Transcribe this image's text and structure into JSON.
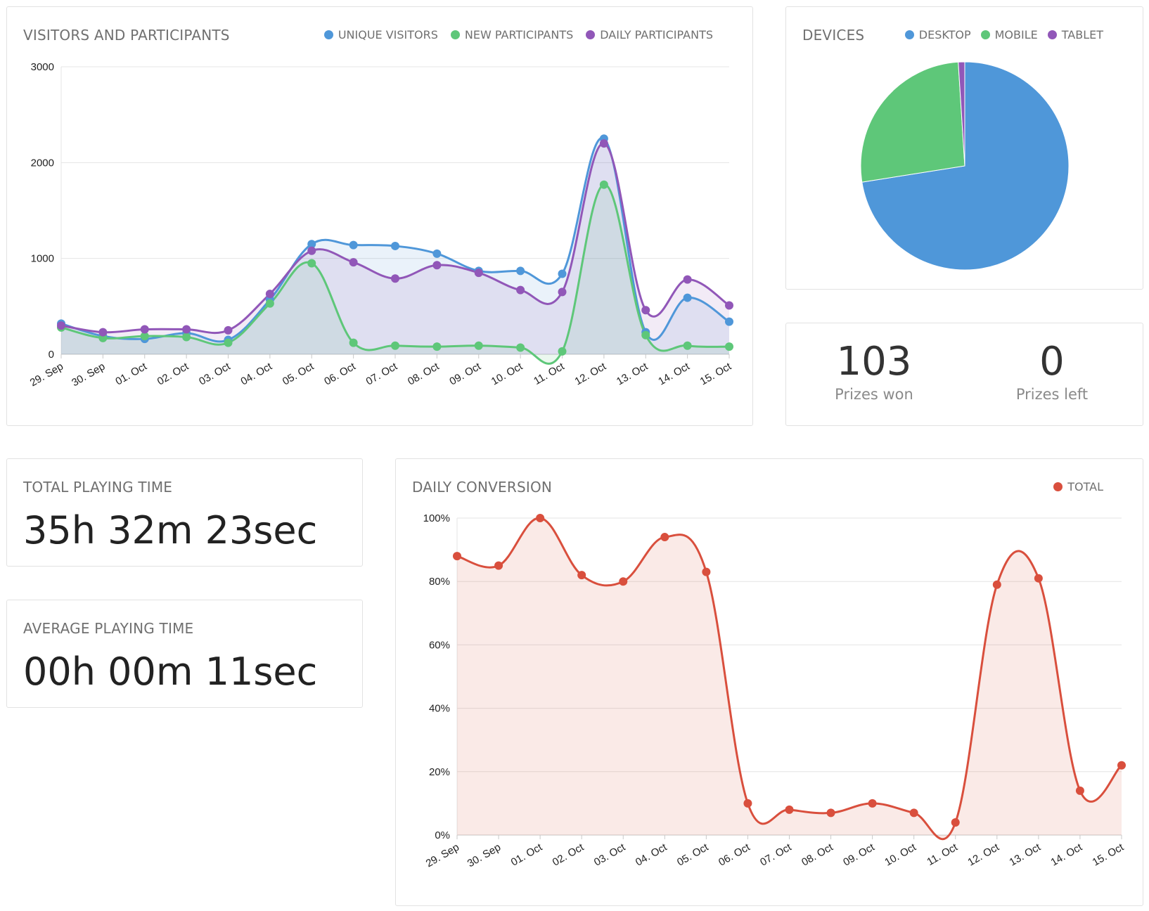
{
  "visitors": {
    "title": "VISITORS AND PARTICIPANTS",
    "colors": {
      "unique": "#4f97d9",
      "new": "#5ec779",
      "daily": "#9157b8"
    },
    "chart_data": {
      "type": "line",
      "x": [
        "29. Sep",
        "30. Sep",
        "01. Oct",
        "02. Oct",
        "03. Oct",
        "04. Oct",
        "05. Oct",
        "06. Oct",
        "07. Oct",
        "08. Oct",
        "09. Oct",
        "10. Oct",
        "11. Oct",
        "12. Oct",
        "13. Oct",
        "14. Oct",
        "15. Oct"
      ],
      "yticks": [
        "0",
        "1000",
        "2000",
        "3000"
      ],
      "ylim": [
        0,
        3000
      ],
      "series": [
        {
          "name": "UNIQUE VISITORS",
          "values": [
            320,
            190,
            160,
            220,
            150,
            570,
            1150,
            1140,
            1130,
            1050,
            870,
            870,
            840,
            2250,
            230,
            590,
            340
          ]
        },
        {
          "name": "NEW PARTICIPANTS",
          "values": [
            280,
            170,
            190,
            180,
            120,
            530,
            950,
            120,
            90,
            80,
            90,
            70,
            30,
            1770,
            200,
            90,
            80
          ]
        },
        {
          "name": "DAILY PARTICIPANTS",
          "values": [
            300,
            230,
            260,
            260,
            250,
            630,
            1080,
            960,
            790,
            930,
            850,
            670,
            650,
            2200,
            460,
            780,
            510
          ]
        }
      ],
      "grid": true,
      "legend": "top-right"
    }
  },
  "devices": {
    "title": "DEVICES",
    "chart_data": {
      "type": "pie",
      "labels": [
        "DESKTOP",
        "MOBILE",
        "TABLET"
      ],
      "values": [
        72.5,
        26.5,
        1.0
      ],
      "colors": [
        "#4f97d9",
        "#5ec779",
        "#9157b8"
      ],
      "legend": "top"
    }
  },
  "prizes": {
    "won": {
      "value": "103",
      "label": "Prizes won"
    },
    "left": {
      "value": "0",
      "label": "Prizes left"
    }
  },
  "total_time": {
    "title": "TOTAL PLAYING TIME",
    "value": "35h 32m 23sec"
  },
  "avg_time": {
    "title": "AVERAGE PLAYING TIME",
    "value": "00h 00m 11sec"
  },
  "conversion": {
    "title": "DAILY CONVERSION",
    "color": "#d94f3d",
    "chart_data": {
      "type": "area",
      "x": [
        "29. Sep",
        "30. Sep",
        "01. Oct",
        "02. Oct",
        "03. Oct",
        "04. Oct",
        "05. Oct",
        "06. Oct",
        "07. Oct",
        "08. Oct",
        "09. Oct",
        "10. Oct",
        "11. Oct",
        "12. Oct",
        "13. Oct",
        "14. Oct",
        "15. Oct"
      ],
      "yticks": [
        "0%",
        "20%",
        "40%",
        "60%",
        "80%",
        "100%"
      ],
      "ylim": [
        0,
        100
      ],
      "series": [
        {
          "name": "TOTAL",
          "values": [
            88,
            85,
            100,
            82,
            80,
            94,
            83,
            10,
            8,
            7,
            10,
            7,
            4,
            79,
            81,
            14,
            22
          ]
        }
      ],
      "grid": true,
      "legend": "top-right"
    }
  }
}
